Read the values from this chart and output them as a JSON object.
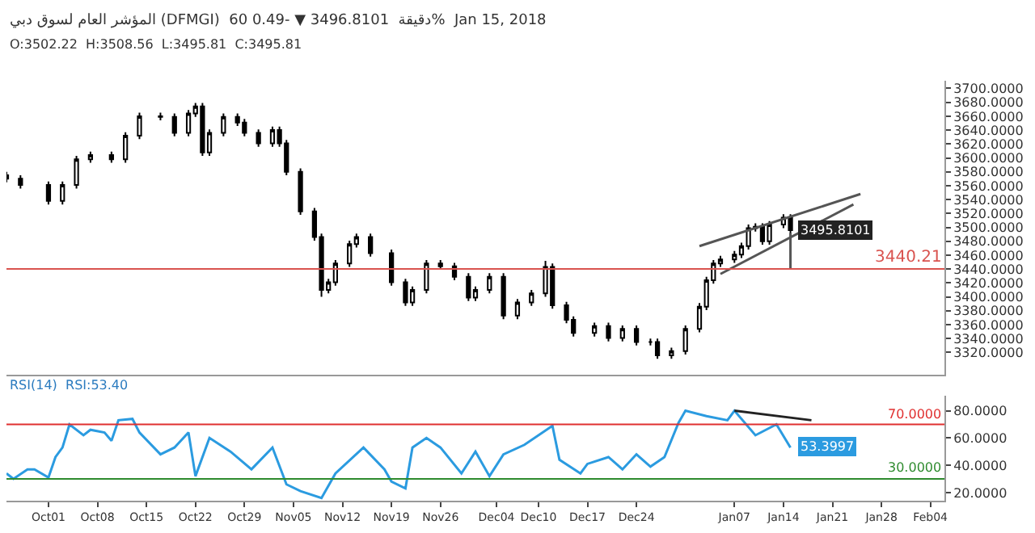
{
  "chart_data": [
    {
      "type": "candlestick",
      "title": "المؤشر العام لسوق دبي (DFMGI)  60 دقيقة  3496.8101 ▼ -0.49%  Jan 15, 2018",
      "subtitle": "O:3502.22  H:3508.56  L:3495.81  C:3495.81",
      "xlim": [
        "2017-09-25",
        "2018-02-06"
      ],
      "ylim": [
        3288,
        3711
      ],
      "yticks": [
        {
          "value": 3320,
          "label": "3320.0000"
        },
        {
          "value": 3340,
          "label": "3340.0000"
        },
        {
          "value": 3360,
          "label": "3360.0000"
        },
        {
          "value": 3380,
          "label": "3380.0000"
        },
        {
          "value": 3400,
          "label": "3400.0000"
        },
        {
          "value": 3420,
          "label": "3420.0000"
        },
        {
          "value": 3440,
          "label": "3440.0000"
        },
        {
          "value": 3460,
          "label": "3460.0000"
        },
        {
          "value": 3480,
          "label": "3480.0000"
        },
        {
          "value": 3500,
          "label": "3500.0000"
        },
        {
          "value": 3520,
          "label": "3520.0000"
        },
        {
          "value": 3540,
          "label": "3540.0000"
        },
        {
          "value": 3560,
          "label": "3560.0000"
        },
        {
          "value": 3580,
          "label": "3580.0000"
        },
        {
          "value": 3600,
          "label": "3600.0000"
        },
        {
          "value": 3620,
          "label": "3620.0000"
        },
        {
          "value": 3640,
          "label": "3640.0000"
        },
        {
          "value": 3660,
          "label": "3660.0000"
        },
        {
          "value": 3680,
          "label": "3680.0000"
        },
        {
          "value": 3700,
          "label": "3700.0000"
        }
      ],
      "tick_labels": "y",
      "ref_lines": [
        {
          "axis": "y",
          "value": 3440.21,
          "label": "3440.21",
          "color": "#d9534f"
        }
      ],
      "annotations": [
        {
          "text": "3495.8101",
          "x": "2018-01-15",
          "y": 3495.8101
        }
      ],
      "series": [
        {
          "type": "candlestick",
          "color": "#000000",
          "x": [
            "2017-09-25",
            "2017-09-27",
            "2017-10-01",
            "2017-10-03",
            "2017-10-05",
            "2017-10-07",
            "2017-10-10",
            "2017-10-12",
            "2017-10-14",
            "2017-10-17",
            "2017-10-19",
            "2017-10-21",
            "2017-10-22",
            "2017-10-23",
            "2017-10-24",
            "2017-10-26",
            "2017-10-28",
            "2017-10-29",
            "2017-10-31",
            "2017-11-02",
            "2017-11-03",
            "2017-11-04",
            "2017-11-06",
            "2017-11-08",
            "2017-11-09",
            "2017-11-10",
            "2017-11-11",
            "2017-11-13",
            "2017-11-14",
            "2017-11-16",
            "2017-11-19",
            "2017-11-21",
            "2017-11-22",
            "2017-11-24",
            "2017-11-26",
            "2017-11-28",
            "2017-11-30",
            "2017-12-01",
            "2017-12-03",
            "2017-12-05",
            "2017-12-07",
            "2017-12-09",
            "2017-12-11",
            "2017-12-12",
            "2017-12-14",
            "2017-12-15",
            "2017-12-18",
            "2017-12-20",
            "2017-12-22",
            "2017-12-24",
            "2017-12-26",
            "2017-12-27",
            "2017-12-29",
            "2017-12-31",
            "2018-01-02",
            "2018-01-03",
            "2018-01-04",
            "2018-01-05",
            "2018-01-07",
            "2018-01-08",
            "2018-01-09",
            "2018-01-10",
            "2018-01-11",
            "2018-01-12",
            "2018-01-14",
            "2018-01-15"
          ],
          "ohlc": [
            [
              3575,
              3580,
              3565,
              3570
            ],
            [
              3570,
              3575,
              3556,
              3561
            ],
            [
              3561,
              3566,
              3533,
              3538
            ],
            [
              3538,
              3566,
              3533,
              3561
            ],
            [
              3561,
              3603,
              3556,
              3598
            ],
            [
              3598,
              3609,
              3593,
              3604
            ],
            [
              3604,
              3609,
              3593,
              3598
            ],
            [
              3598,
              3637,
              3593,
              3632
            ],
            [
              3632,
              3665,
              3627,
              3660
            ],
            [
              3660,
              3665,
              3654,
              3659
            ],
            [
              3659,
              3664,
              3631,
              3636
            ],
            [
              3636,
              3669,
              3631,
              3664
            ],
            [
              3664,
              3679,
              3659,
              3674
            ],
            [
              3674,
              3679,
              3603,
              3608
            ],
            [
              3608,
              3641,
              3603,
              3636
            ],
            [
              3636,
              3664,
              3631,
              3659
            ],
            [
              3659,
              3664,
              3646,
              3651
            ],
            [
              3651,
              3656,
              3631,
              3636
            ],
            [
              3636,
              3641,
              3616,
              3621
            ],
            [
              3621,
              3645,
              3616,
              3640
            ],
            [
              3640,
              3645,
              3616,
              3621
            ],
            [
              3621,
              3626,
              3575,
              3580
            ],
            [
              3580,
              3585,
              3518,
              3523
            ],
            [
              3523,
              3528,
              3481,
              3486
            ],
            [
              3486,
              3491,
              3400,
              3410
            ],
            [
              3410,
              3426,
              3405,
              3421
            ],
            [
              3421,
              3453,
              3416,
              3448
            ],
            [
              3448,
              3481,
              3443,
              3476
            ],
            [
              3476,
              3491,
              3471,
              3486
            ],
            [
              3486,
              3491,
              3458,
              3463
            ],
            [
              3463,
              3468,
              3416,
              3421
            ],
            [
              3421,
              3426,
              3387,
              3392
            ],
            [
              3392,
              3415,
              3387,
              3410
            ],
            [
              3410,
              3453,
              3405,
              3448
            ],
            [
              3448,
              3453,
              3439,
              3444
            ],
            [
              3444,
              3449,
              3424,
              3429
            ],
            [
              3429,
              3434,
              3394,
              3399
            ],
            [
              3399,
              3415,
              3394,
              3410
            ],
            [
              3410,
              3434,
              3405,
              3429
            ],
            [
              3429,
              3434,
              3368,
              3373
            ],
            [
              3373,
              3397,
              3368,
              3392
            ],
            [
              3392,
              3410,
              3387,
              3405
            ],
            [
              3405,
              3452,
              3400,
              3443
            ],
            [
              3443,
              3448,
              3383,
              3388
            ],
            [
              3388,
              3393,
              3362,
              3367
            ],
            [
              3367,
              3372,
              3343,
              3348
            ],
            [
              3348,
              3363,
              3343,
              3358
            ],
            [
              3358,
              3363,
              3336,
              3341
            ],
            [
              3341,
              3359,
              3336,
              3354
            ],
            [
              3354,
              3359,
              3330,
              3335
            ],
            [
              3335,
              3340,
              3330,
              3335
            ],
            [
              3335,
              3340,
              3311,
              3316
            ],
            [
              3316,
              3327,
              3311,
              3322
            ],
            [
              3322,
              3359,
              3317,
              3354
            ],
            [
              3354,
              3391,
              3349,
              3386
            ],
            [
              3386,
              3429,
              3381,
              3424
            ],
            [
              3424,
              3453,
              3419,
              3448
            ],
            [
              3448,
              3459,
              3443,
              3454
            ],
            [
              3454,
              3466,
              3449,
              3461
            ],
            [
              3461,
              3478,
              3456,
              3473
            ],
            [
              3473,
              3504,
              3468,
              3499
            ],
            [
              3499,
              3506,
              3494,
              3501
            ],
            [
              3501,
              3506,
              3475,
              3480
            ],
            [
              3480,
              3509,
              3475,
              3504
            ],
            [
              3504,
              3519,
              3499,
              3514
            ],
            [
              3514,
              3519,
              3491,
              3496
            ]
          ]
        },
        {
          "type": "line",
          "color": "#555555",
          "x": [
            "2018-01-02",
            "2018-01-25"
          ],
          "values": [
            3473,
            3548
          ]
        },
        {
          "type": "line",
          "color": "#555555",
          "x": [
            "2018-01-05",
            "2018-01-24"
          ],
          "values": [
            3433,
            3533
          ]
        },
        {
          "type": "line",
          "color": "#555555",
          "x": [
            "2018-01-15",
            "2018-01-15"
          ],
          "values": [
            3440,
            3492
          ]
        }
      ]
    },
    {
      "type": "line",
      "title": "RSI(14)  RSI:53.40",
      "xlim": [
        "2017-09-25",
        "2018-02-06"
      ],
      "ylim": [
        14,
        91
      ],
      "xticks": [
        {
          "value": "2017-10-01",
          "label": "Oct01"
        },
        {
          "value": "2017-10-08",
          "label": "Oct08"
        },
        {
          "value": "2017-10-15",
          "label": "Oct15"
        },
        {
          "value": "2017-10-22",
          "label": "Oct22"
        },
        {
          "value": "2017-10-29",
          "label": "Oct29"
        },
        {
          "value": "2017-11-05",
          "label": "Nov05"
        },
        {
          "value": "2017-11-12",
          "label": "Nov12"
        },
        {
          "value": "2017-11-19",
          "label": "Nov19"
        },
        {
          "value": "2017-11-26",
          "label": "Nov26"
        },
        {
          "value": "2017-12-04",
          "label": "Dec04"
        },
        {
          "value": "2017-12-10",
          "label": "Dec10"
        },
        {
          "value": "2017-12-17",
          "label": "Dec17"
        },
        {
          "value": "2017-12-24",
          "label": "Dec24"
        },
        {
          "value": "2018-01-07",
          "label": "Jan07"
        },
        {
          "value": "2018-01-14",
          "label": "Jan14"
        },
        {
          "value": "2018-01-21",
          "label": "Jan21"
        },
        {
          "value": "2018-01-28",
          "label": "Jan28"
        },
        {
          "value": "2018-02-04",
          "label": "Feb04"
        }
      ],
      "yticks": [
        {
          "value": 20,
          "label": "20.0000"
        },
        {
          "value": 40,
          "label": "40.0000"
        },
        {
          "value": 60,
          "label": "60.0000"
        },
        {
          "value": 80,
          "label": "80.0000"
        }
      ],
      "line_style": "solid",
      "marker": "none",
      "ref_lines": [
        {
          "axis": "y",
          "value": 70,
          "label": "70.0000",
          "color": "#e03030"
        },
        {
          "axis": "y",
          "value": 30,
          "label": "30.0000",
          "color": "#2e8b2e"
        }
      ],
      "annotations": [
        {
          "text": "53.3997",
          "x": "2018-01-15",
          "y": 53.3997
        }
      ],
      "series": [
        {
          "color": "#2b9be0",
          "x": [
            "2017-09-25",
            "2017-09-26",
            "2017-09-28",
            "2017-09-29",
            "2017-10-01",
            "2017-10-02",
            "2017-10-03",
            "2017-10-04",
            "2017-10-06",
            "2017-10-07",
            "2017-10-09",
            "2017-10-10",
            "2017-10-11",
            "2017-10-13",
            "2017-10-14",
            "2017-10-17",
            "2017-10-19",
            "2017-10-21",
            "2017-10-22",
            "2017-10-24",
            "2017-10-27",
            "2017-10-30",
            "2017-11-02",
            "2017-11-04",
            "2017-11-06",
            "2017-11-09",
            "2017-11-11",
            "2017-11-15",
            "2017-11-18",
            "2017-11-19",
            "2017-11-21",
            "2017-11-22",
            "2017-11-24",
            "2017-11-26",
            "2017-11-29",
            "2017-12-01",
            "2017-12-03",
            "2017-12-05",
            "2017-12-08",
            "2017-12-12",
            "2017-12-13",
            "2017-12-16",
            "2017-12-17",
            "2017-12-20",
            "2017-12-22",
            "2017-12-24",
            "2017-12-26",
            "2017-12-28",
            "2017-12-30",
            "2017-12-31",
            "2018-01-03",
            "2018-01-06",
            "2018-01-07",
            "2018-01-10",
            "2018-01-13",
            "2018-01-15"
          ],
          "values": [
            34,
            30,
            37,
            37,
            31,
            46,
            53,
            70,
            62,
            66,
            64,
            58,
            73,
            74,
            64,
            48,
            53,
            64,
            32,
            60,
            50,
            37,
            53,
            26,
            21,
            16,
            34,
            53,
            37,
            28,
            23,
            53,
            60,
            53,
            34,
            50,
            32,
            48,
            55,
            69,
            44,
            34,
            41,
            46,
            37,
            48,
            39,
            46,
            71,
            80,
            76,
            73,
            80,
            62,
            70,
            53
          ]
        },
        {
          "color": "#222222",
          "x": [
            "2018-01-07",
            "2018-01-18"
          ],
          "values": [
            80,
            73
          ]
        }
      ]
    }
  ]
}
